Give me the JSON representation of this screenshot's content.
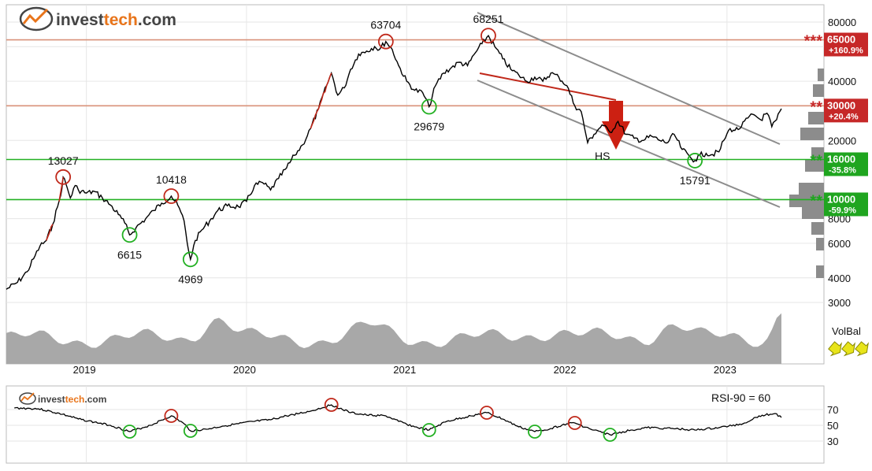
{
  "logo": {
    "main": "invest",
    "accent": "tech",
    "suffix": ".com",
    "accent_color": "#e8741a"
  },
  "chart_data": [
    {
      "type": "line",
      "panel": "price",
      "scale": "log",
      "ylim": [
        3000,
        100000
      ],
      "y_ticks": [
        80000,
        60000,
        40000,
        20000,
        8000,
        6000,
        4000,
        3000
      ],
      "x_tick_labels": [
        "2019",
        "2020",
        "2021",
        "2022",
        "2023"
      ],
      "series": [
        {
          "values": [
            [
              2018.55,
              3500
            ],
            [
              2018.62,
              3800
            ],
            [
              2018.68,
              4300
            ],
            [
              2018.72,
              5000
            ],
            [
              2018.76,
              5800
            ],
            [
              2018.8,
              6200
            ],
            [
              2018.84,
              7500
            ],
            [
              2018.87,
              9200
            ],
            [
              2018.89,
              10500
            ],
            [
              2018.905,
              13027
            ],
            [
              2018.93,
              11500
            ],
            [
              2018.95,
              10200
            ],
            [
              2018.98,
              11800
            ],
            [
              2019.0,
              11200
            ],
            [
              2019.05,
              10800
            ],
            [
              2019.1,
              11000
            ],
            [
              2019.15,
              10200
            ],
            [
              2019.2,
              9400
            ],
            [
              2019.25,
              8400
            ],
            [
              2019.29,
              7600
            ],
            [
              2019.32,
              6615
            ],
            [
              2019.36,
              7200
            ],
            [
              2019.42,
              8000
            ],
            [
              2019.47,
              8800
            ],
            [
              2019.52,
              9600
            ],
            [
              2019.58,
              10418
            ],
            [
              2019.62,
              9400
            ],
            [
              2019.66,
              7800
            ],
            [
              2019.68,
              6000
            ],
            [
              2019.7,
              4969
            ],
            [
              2019.73,
              6200
            ],
            [
              2019.77,
              7000
            ],
            [
              2019.82,
              7800
            ],
            [
              2019.87,
              8800
            ],
            [
              2019.93,
              9300
            ],
            [
              2020.0,
              9200
            ],
            [
              2020.05,
              9800
            ],
            [
              2020.1,
              11800
            ],
            [
              2020.15,
              12200
            ],
            [
              2020.2,
              11200
            ],
            [
              2020.25,
              12800
            ],
            [
              2020.3,
              14500
            ],
            [
              2020.35,
              16800
            ],
            [
              2020.4,
              19000
            ],
            [
              2020.45,
              23000
            ],
            [
              2020.5,
              29000
            ],
            [
              2020.55,
              38000
            ],
            [
              2020.58,
              44000
            ],
            [
              2020.62,
              34000
            ],
            [
              2020.66,
              37000
            ],
            [
              2020.7,
              46000
            ],
            [
              2020.75,
              55000
            ],
            [
              2020.8,
              57000
            ],
            [
              2020.85,
              60000
            ],
            [
              2020.88,
              58000
            ],
            [
              2020.92,
              63704
            ],
            [
              2020.96,
              58000
            ],
            [
              2021.0,
              48000
            ],
            [
              2021.05,
              40000
            ],
            [
              2021.1,
              36000
            ],
            [
              2021.15,
              35000
            ],
            [
              2021.19,
              29679
            ],
            [
              2021.23,
              38000
            ],
            [
              2021.28,
              44000
            ],
            [
              2021.33,
              47000
            ],
            [
              2021.38,
              50000
            ],
            [
              2021.43,
              48000
            ],
            [
              2021.48,
              56000
            ],
            [
              2021.52,
              62000
            ],
            [
              2021.56,
              68251
            ],
            [
              2021.6,
              60000
            ],
            [
              2021.65,
              52000
            ],
            [
              2021.7,
              46000
            ],
            [
              2021.75,
              43000
            ],
            [
              2021.8,
              40000
            ],
            [
              2021.85,
              42000
            ],
            [
              2021.9,
              40000
            ],
            [
              2021.95,
              44000
            ],
            [
              2022.0,
              42000
            ],
            [
              2022.05,
              38000
            ],
            [
              2022.1,
              30000
            ],
            [
              2022.14,
              28000
            ],
            [
              2022.18,
              19500
            ],
            [
              2022.22,
              21500
            ],
            [
              2022.27,
              24000
            ],
            [
              2022.32,
              22000
            ],
            [
              2022.37,
              25000
            ],
            [
              2022.42,
              21500
            ],
            [
              2022.47,
              20500
            ],
            [
              2022.52,
              20000
            ],
            [
              2022.58,
              21000
            ],
            [
              2022.63,
              20000
            ],
            [
              2022.68,
              19500
            ],
            [
              2022.72,
              21500
            ],
            [
              2022.77,
              18000
            ],
            [
              2022.82,
              16500
            ],
            [
              2022.85,
              15791
            ],
            [
              2022.88,
              16800
            ],
            [
              2022.92,
              17200
            ],
            [
              2022.95,
              16900
            ],
            [
              2023.0,
              17500
            ],
            [
              2023.03,
              20000
            ],
            [
              2023.07,
              23000
            ],
            [
              2023.1,
              22500
            ],
            [
              2023.14,
              23500
            ],
            [
              2023.18,
              26000
            ],
            [
              2023.22,
              27000
            ],
            [
              2023.26,
              25500
            ],
            [
              2023.3,
              27500
            ],
            [
              2023.33,
              23500
            ],
            [
              2023.36,
              25500
            ],
            [
              2023.39,
              29000
            ]
          ]
        }
      ],
      "levels": [
        {
          "value": 65000,
          "label": "65000",
          "pct": "+160.9%",
          "stars": "***",
          "color": "#c62828"
        },
        {
          "value": 30000,
          "label": "30000",
          "pct": "+20.4%",
          "stars": "**",
          "color": "#c62828"
        },
        {
          "value": 16000,
          "label": "16000",
          "pct": "-35.8%",
          "stars": "**",
          "color": "#1fa51f"
        },
        {
          "value": 10000,
          "label": "10000",
          "pct": "-59.9%",
          "stars": "**",
          "color": "#1fa51f"
        }
      ],
      "annotations": [
        {
          "label": "13027",
          "x": 2018.905,
          "y": 13027,
          "kind": "top"
        },
        {
          "label": "6615",
          "x": 2019.32,
          "y": 6615,
          "kind": "bottom"
        },
        {
          "label": "10418",
          "x": 2019.58,
          "y": 10418,
          "kind": "top"
        },
        {
          "label": "4969",
          "x": 2019.7,
          "y": 4969,
          "kind": "bottom"
        },
        {
          "label": "63704",
          "x": 2020.92,
          "y": 63704,
          "kind": "top"
        },
        {
          "label": "29679",
          "x": 2021.19,
          "y": 29679,
          "kind": "bottom"
        },
        {
          "label": "68251",
          "x": 2021.56,
          "y": 68251,
          "kind": "top"
        },
        {
          "label": "15791",
          "x": 2022.85,
          "y": 15791,
          "kind": "bottom"
        }
      ],
      "pattern_label": "HS",
      "volume_label": "VolBal"
    },
    {
      "type": "line",
      "panel": "rsi",
      "title": "RSI-90 = 60",
      "y_ticks": [
        70,
        50,
        30
      ],
      "ylim": [
        20,
        85
      ],
      "series": [
        {
          "values": [
            [
              2018.6,
              72
            ],
            [
              2018.75,
              71
            ],
            [
              2018.9,
              64
            ],
            [
              2019.0,
              58
            ],
            [
              2019.1,
              54
            ],
            [
              2019.2,
              50
            ],
            [
              2019.32,
              42
            ],
            [
              2019.45,
              50
            ],
            [
              2019.58,
              62
            ],
            [
              2019.66,
              52
            ],
            [
              2019.7,
              43
            ],
            [
              2019.8,
              45
            ],
            [
              2019.9,
              49
            ],
            [
              2020.0,
              52
            ],
            [
              2020.1,
              55
            ],
            [
              2020.2,
              57
            ],
            [
              2020.3,
              62
            ],
            [
              2020.45,
              68
            ],
            [
              2020.58,
              76
            ],
            [
              2020.7,
              66
            ],
            [
              2020.8,
              63
            ],
            [
              2020.92,
              62
            ],
            [
              2021.0,
              55
            ],
            [
              2021.1,
              48
            ],
            [
              2021.19,
              44
            ],
            [
              2021.3,
              55
            ],
            [
              2021.45,
              62
            ],
            [
              2021.55,
              66
            ],
            [
              2021.65,
              58
            ],
            [
              2021.75,
              48
            ],
            [
              2021.85,
              42
            ],
            [
              2021.95,
              46
            ],
            [
              2022.05,
              52
            ],
            [
              2022.1,
              53
            ],
            [
              2022.2,
              45
            ],
            [
              2022.32,
              38
            ],
            [
              2022.45,
              44
            ],
            [
              2022.55,
              47
            ],
            [
              2022.7,
              46
            ],
            [
              2022.85,
              44
            ],
            [
              2023.0,
              47
            ],
            [
              2023.15,
              52
            ],
            [
              2023.25,
              62
            ],
            [
              2023.35,
              65
            ],
            [
              2023.39,
              60
            ]
          ]
        }
      ],
      "annotations": [
        {
          "x": 2019.32,
          "y": 42,
          "kind": "bottom"
        },
        {
          "x": 2019.58,
          "y": 62,
          "kind": "top"
        },
        {
          "x": 2019.7,
          "y": 43,
          "kind": "bottom"
        },
        {
          "x": 2020.58,
          "y": 76,
          "kind": "top"
        },
        {
          "x": 2021.19,
          "y": 44,
          "kind": "bottom"
        },
        {
          "x": 2021.55,
          "y": 66,
          "kind": "top"
        },
        {
          "x": 2021.85,
          "y": 42,
          "kind": "bottom"
        },
        {
          "x": 2022.1,
          "y": 53,
          "kind": "top"
        },
        {
          "x": 2022.32,
          "y": 38,
          "kind": "bottom"
        }
      ]
    }
  ]
}
